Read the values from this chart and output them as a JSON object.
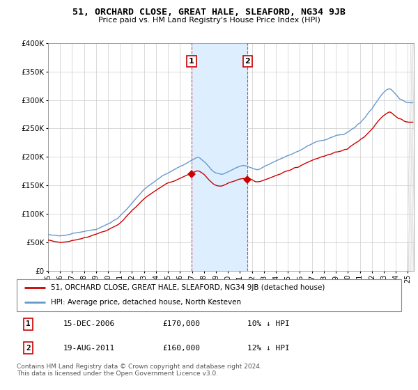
{
  "title": "51, ORCHARD CLOSE, GREAT HALE, SLEAFORD, NG34 9JB",
  "subtitle": "Price paid vs. HM Land Registry's House Price Index (HPI)",
  "legend_line1": "51, ORCHARD CLOSE, GREAT HALE, SLEAFORD, NG34 9JB (detached house)",
  "legend_line2": "HPI: Average price, detached house, North Kesteven",
  "transaction1_date": "15-DEC-2006",
  "transaction1_price": "£170,000",
  "transaction1_hpi": "10% ↓ HPI",
  "transaction2_date": "19-AUG-2011",
  "transaction2_price": "£160,000",
  "transaction2_hpi": "12% ↓ HPI",
  "footnote": "Contains HM Land Registry data © Crown copyright and database right 2024.\nThis data is licensed under the Open Government Licence v3.0.",
  "sale1_year": 2006.96,
  "sale2_year": 2011.63,
  "sale1_price": 170000,
  "sale2_price": 160000,
  "hpi_color": "#6699cc",
  "property_color": "#cc0000",
  "highlight_color": "#ddeeff",
  "ylim_min": 0,
  "ylim_max": 400000,
  "yticks": [
    0,
    50000,
    100000,
    150000,
    200000,
    250000,
    300000,
    350000,
    400000
  ],
  "xlim_min": 1995,
  "xlim_max": 2025.5
}
